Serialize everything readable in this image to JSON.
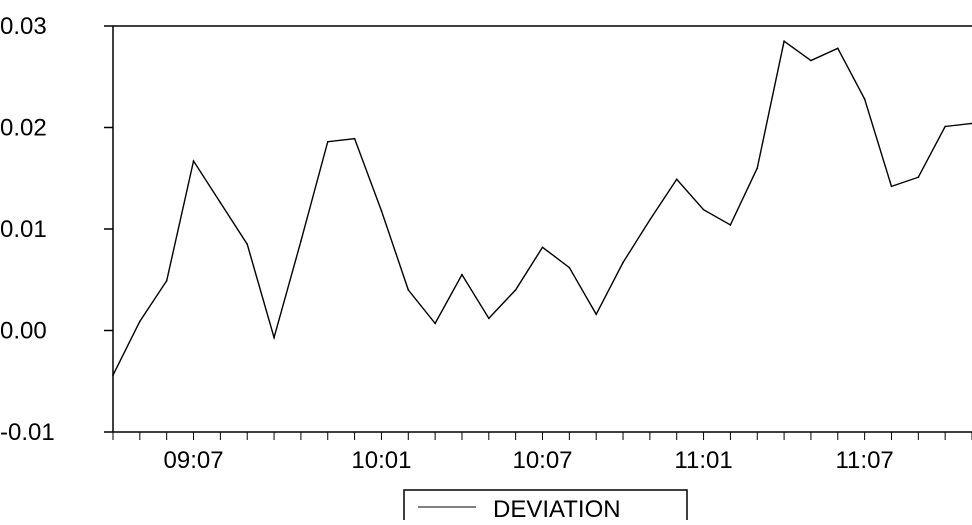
{
  "chart_data": {
    "type": "line",
    "title": "",
    "xlabel": "",
    "ylabel": "",
    "ylim": [
      -0.01,
      0.03
    ],
    "y_ticks": [
      -0.01,
      0.0,
      0.01,
      0.02,
      0.03
    ],
    "y_tick_labels": [
      "-0.01",
      "0.00",
      "0.01",
      "0.02",
      "0.03"
    ],
    "x_tick_labels": [
      {
        "index": 3,
        "label": "09:07"
      },
      {
        "index": 10,
        "label": "10:01"
      },
      {
        "index": 16,
        "label": "10:07"
      },
      {
        "index": 22,
        "label": "11:01"
      },
      {
        "index": 28,
        "label": "11:07"
      }
    ],
    "n_points": 33,
    "series": [
      {
        "name": "DEVIATION",
        "color": "#000000",
        "values": [
          -0.0044,
          0.0009,
          0.0049,
          0.0167,
          0.0126,
          0.0085,
          -0.0007,
          0.0088,
          0.0186,
          0.0189,
          0.0118,
          0.004,
          0.0007,
          0.0055,
          0.0012,
          0.004,
          0.0082,
          0.0062,
          0.0016,
          0.0067,
          0.0109,
          0.0149,
          0.0119,
          0.0104,
          0.016,
          0.0285,
          0.0266,
          0.0278,
          0.0228,
          0.0142,
          0.0151,
          0.0201,
          0.0204
        ]
      }
    ],
    "legend": {
      "position": "bottom-center",
      "entries": [
        "DEVIATION"
      ]
    },
    "grid": false
  }
}
